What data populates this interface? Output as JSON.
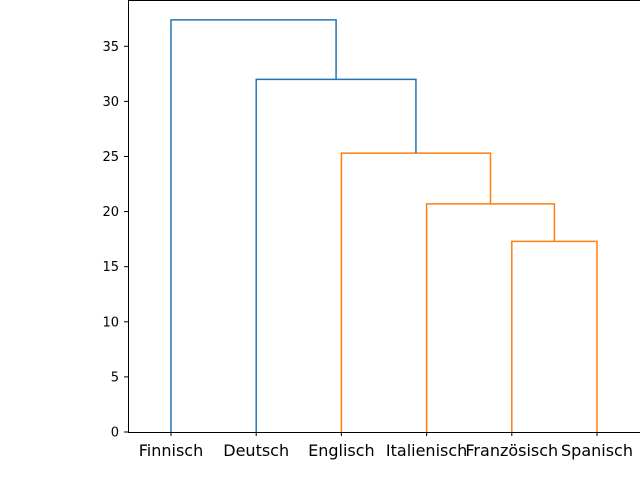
{
  "chart_data": {
    "type": "dendrogram",
    "title": "",
    "xlabel": "",
    "ylabel": "",
    "ylim": [
      0,
      39.2
    ],
    "yticks": [
      0,
      5,
      10,
      15,
      20,
      25,
      30,
      35
    ],
    "leaves": [
      "Finnisch",
      "Deutsch",
      "Englisch",
      "Italienisch",
      "Französisch",
      "Spanisch"
    ],
    "links": [
      {
        "left": [
          4,
          0
        ],
        "right": [
          5,
          0
        ],
        "height": 17.3,
        "color": "#ff7f0e"
      },
      {
        "left": [
          3,
          0
        ],
        "right": [
          4.5,
          17.3
        ],
        "height": 20.7,
        "color": "#ff7f0e"
      },
      {
        "left": [
          2,
          0
        ],
        "right": [
          3.75,
          20.7
        ],
        "height": 25.3,
        "color": "#ff7f0e"
      },
      {
        "left": [
          1,
          0
        ],
        "right": [
          2.875,
          25.3
        ],
        "height": 32.0,
        "color": "#1f77b4"
      },
      {
        "left": [
          0,
          0
        ],
        "right": [
          1.9375,
          32.0
        ],
        "height": 37.4,
        "color": "#1f77b4"
      }
    ],
    "grid": false,
    "colors": {
      "cluster": "#ff7f0e",
      "above_threshold": "#1f77b4",
      "axis": "#000000"
    }
  }
}
